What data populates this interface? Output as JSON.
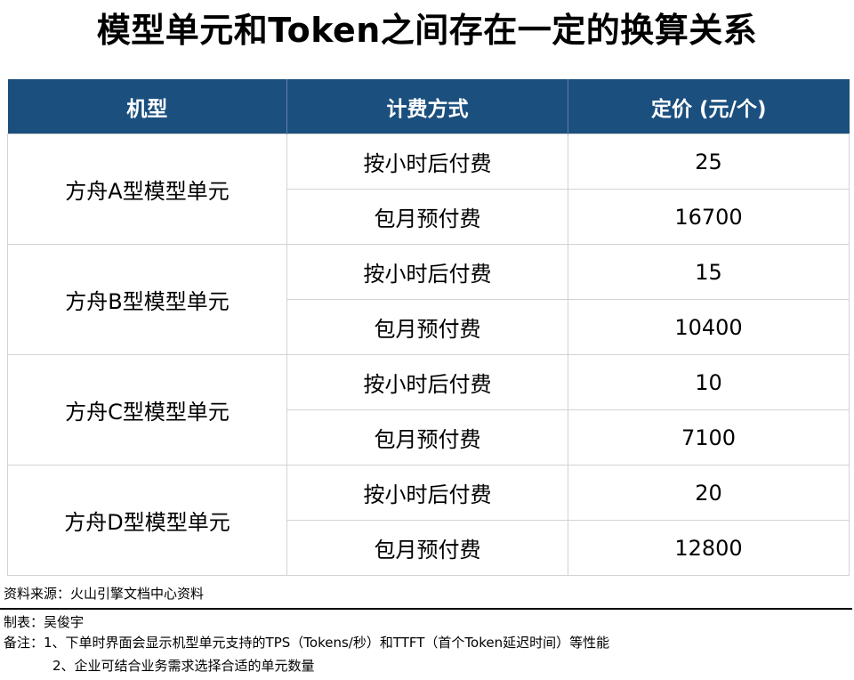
{
  "title": "模型单元和Token之间存在一定的换算关系",
  "table": {
    "headers": [
      "机型",
      "计费方式",
      "定价 (元/个)"
    ],
    "groups": [
      {
        "model": "方舟A型模型单元",
        "rows": [
          {
            "billing": "按小时后付费",
            "price": "25"
          },
          {
            "billing": "包月预付费",
            "price": "16700"
          }
        ]
      },
      {
        "model": "方舟B型模型单元",
        "rows": [
          {
            "billing": "按小时后付费",
            "price": "15"
          },
          {
            "billing": "包月预付费",
            "price": "10400"
          }
        ]
      },
      {
        "model": "方舟C型模型单元",
        "rows": [
          {
            "billing": "按小时后付费",
            "price": "10"
          },
          {
            "billing": "包月预付费",
            "price": "7100"
          }
        ]
      },
      {
        "model": "方舟D型模型单元",
        "rows": [
          {
            "billing": "按小时后付费",
            "price": "20"
          },
          {
            "billing": "包月预付费",
            "price": "12800"
          }
        ]
      }
    ]
  },
  "footer": {
    "source": "资料来源：火山引擎文档中心资料",
    "author": "制表：吴俊宇",
    "note_1": "备注：1、下单时界面会显示机型单元支持的TPS（Tokens/秒）和TTFT（首个Token延迟时间）等性能",
    "note_2": "2、企业可结合业务需求选择合适的单元数量"
  },
  "colors": {
    "header_bg": "#1b4f7e",
    "header_text": "#ffffff",
    "border": "#d3d3d3"
  }
}
